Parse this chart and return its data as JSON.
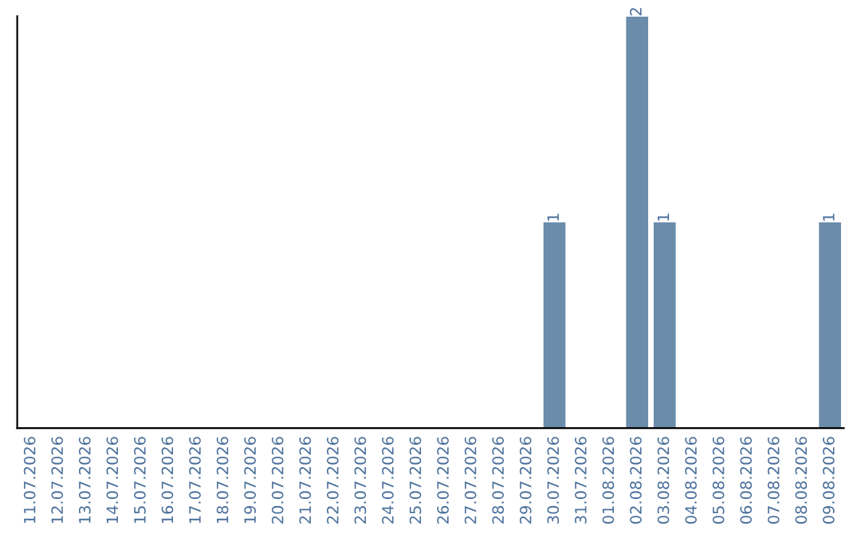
{
  "chart_data": {
    "type": "bar",
    "categories": [
      "11.07.2026",
      "12.07.2026",
      "13.07.2026",
      "14.07.2026",
      "15.07.2026",
      "16.07.2026",
      "17.07.2026",
      "18.07.2026",
      "19.07.2026",
      "20.07.2026",
      "21.07.2026",
      "22.07.2026",
      "23.07.2026",
      "24.07.2026",
      "25.07.2026",
      "26.07.2026",
      "27.07.2026",
      "28.07.2026",
      "29.07.2026",
      "30.07.2026",
      "31.07.2026",
      "01.08.2026",
      "02.08.2026",
      "03.08.2026",
      "04.08.2026",
      "05.08.2026",
      "06.08.2026",
      "07.08.2026",
      "08.08.2026",
      "09.08.2026"
    ],
    "values": [
      null,
      null,
      null,
      null,
      null,
      null,
      null,
      null,
      null,
      null,
      null,
      null,
      null,
      null,
      null,
      null,
      null,
      null,
      null,
      1,
      null,
      null,
      2,
      1,
      null,
      null,
      null,
      null,
      null,
      1
    ],
    "data_labels": true,
    "color": "#6b8cab",
    "tick_labels": "x",
    "grid": false,
    "legend": false
  }
}
